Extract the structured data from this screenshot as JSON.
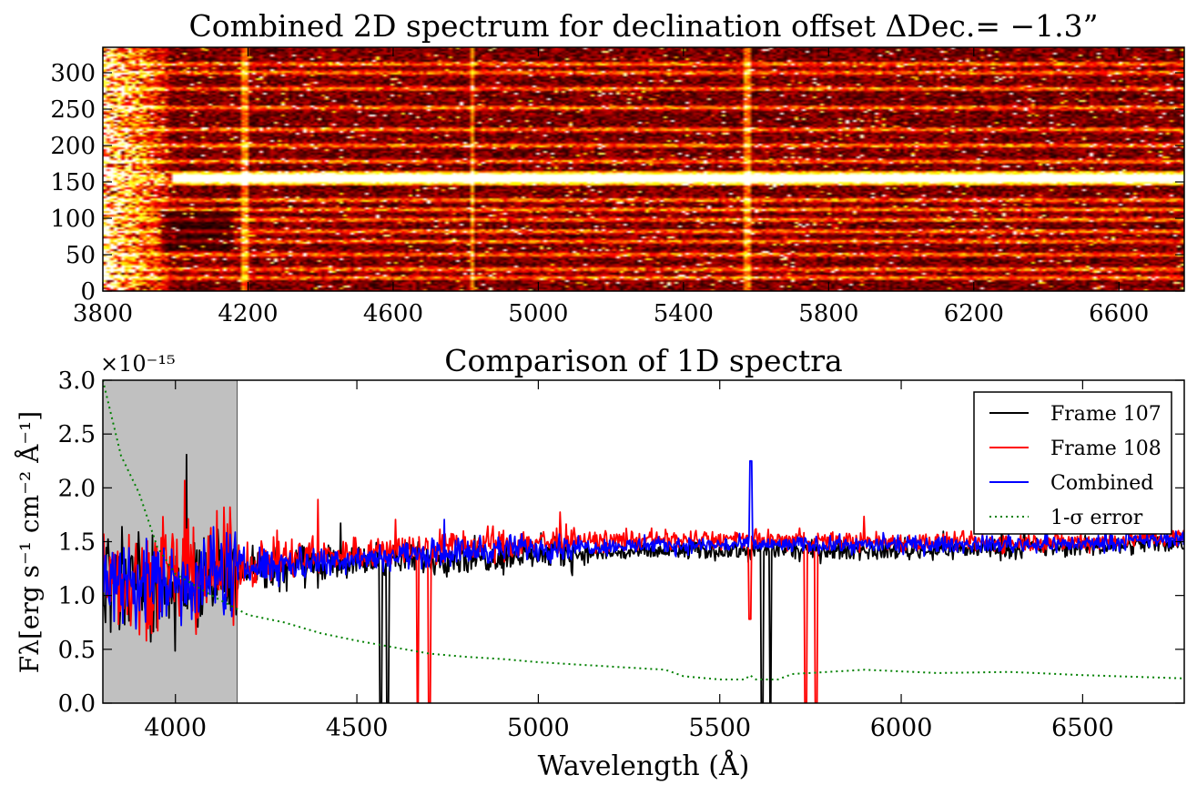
{
  "chart_data": [
    {
      "type": "heatmap",
      "title": "Combined 2D spectrum for declination offset ΔDec.= −1.3”",
      "xlabel": "",
      "ylabel": "",
      "xlim": [
        3800,
        6780
      ],
      "ylim": [
        0,
        335
      ],
      "x_ticks": [
        3800,
        4200,
        4600,
        5000,
        5400,
        5800,
        6200,
        6600
      ],
      "y_ticks": [
        0,
        50,
        100,
        150,
        200,
        250,
        300
      ],
      "colormap": "hot",
      "bright_trace": {
        "row_center": 155,
        "row_halfwidth": 11,
        "from_x": 3990
      },
      "secondary_trace_rows": [
        18,
        30,
        50,
        68,
        82,
        98,
        112,
        125,
        178,
        200,
        222,
        252,
        278,
        300,
        312
      ],
      "sky_line_x": [
        4190,
        4820,
        5577
      ]
    },
    {
      "type": "line",
      "title": "Comparison of 1D spectra",
      "xlabel": "Wavelength (Å)",
      "ylabel": "Fλ[erg s⁻¹ cm⁻² Å⁻¹]",
      "y_multiplier": "×10⁻¹⁵",
      "xlim": [
        3800,
        6780
      ],
      "ylim": [
        0.0,
        3.0
      ],
      "x_ticks": [
        4000,
        4500,
        5000,
        5500,
        6000,
        6500
      ],
      "y_ticks": [
        "0.0",
        "0.5",
        "1.0",
        "1.5",
        "2.0",
        "2.5",
        "3.0"
      ],
      "shaded_region": {
        "x": [
          3800,
          4170
        ],
        "color": "#c0c0c0"
      },
      "legend_position": "top-right",
      "series": [
        {
          "name": "Frame 107",
          "color": "#000000",
          "style": "solid",
          "baseline": [
            [
              3800,
              1.15
            ],
            [
              4000,
              1.12
            ],
            [
              4200,
              1.25
            ],
            [
              4500,
              1.32
            ],
            [
              5000,
              1.38
            ],
            [
              5500,
              1.42
            ],
            [
              6000,
              1.42
            ],
            [
              6500,
              1.45
            ],
            [
              6780,
              1.5
            ]
          ],
          "drops": [
            [
              4565,
              0.0
            ],
            [
              4585,
              0.0
            ],
            [
              5617,
              0.0
            ],
            [
              5640,
              0.0
            ]
          ]
        },
        {
          "name": "Frame 108",
          "color": "#ff0000",
          "style": "solid",
          "baseline": [
            [
              3800,
              1.2
            ],
            [
              4000,
              1.15
            ],
            [
              4200,
              1.3
            ],
            [
              4500,
              1.4
            ],
            [
              5000,
              1.5
            ],
            [
              5500,
              1.52
            ],
            [
              6000,
              1.5
            ],
            [
              6500,
              1.5
            ],
            [
              6780,
              1.55
            ]
          ],
          "drops": [
            [
              4668,
              0.0
            ],
            [
              4700,
              0.0
            ],
            [
              5583,
              0.78
            ],
            [
              5737,
              0.0
            ],
            [
              5765,
              0.0
            ]
          ]
        },
        {
          "name": "Combined",
          "color": "#0000ff",
          "style": "solid",
          "baseline": [
            [
              3800,
              1.15
            ],
            [
              4000,
              1.12
            ],
            [
              4200,
              1.27
            ],
            [
              4500,
              1.35
            ],
            [
              5000,
              1.45
            ],
            [
              5500,
              1.47
            ],
            [
              6000,
              1.47
            ],
            [
              6500,
              1.48
            ],
            [
              6780,
              1.53
            ]
          ],
          "drops": [
            [
              5585,
              2.25
            ]
          ]
        },
        {
          "name": "1-σ error",
          "color": "#008000",
          "style": "dotted",
          "points": [
            [
              3800,
              3.0
            ],
            [
              3850,
              2.3
            ],
            [
              3900,
              1.95
            ],
            [
              3950,
              1.45
            ],
            [
              4000,
              1.2
            ],
            [
              4100,
              1.0
            ],
            [
              4200,
              0.82
            ],
            [
              4300,
              0.75
            ],
            [
              4400,
              0.65
            ],
            [
              4500,
              0.58
            ],
            [
              4600,
              0.52
            ],
            [
              4700,
              0.46
            ],
            [
              4800,
              0.43
            ],
            [
              4900,
              0.41
            ],
            [
              5000,
              0.38
            ],
            [
              5200,
              0.34
            ],
            [
              5350,
              0.31
            ],
            [
              5400,
              0.25
            ],
            [
              5500,
              0.22
            ],
            [
              5570,
              0.22
            ],
            [
              5583,
              0.26
            ],
            [
              5600,
              0.22
            ],
            [
              5660,
              0.22
            ],
            [
              5700,
              0.27
            ],
            [
              5900,
              0.31
            ],
            [
              6100,
              0.28
            ],
            [
              6300,
              0.29
            ],
            [
              6500,
              0.26
            ],
            [
              6780,
              0.23
            ]
          ]
        }
      ]
    }
  ]
}
